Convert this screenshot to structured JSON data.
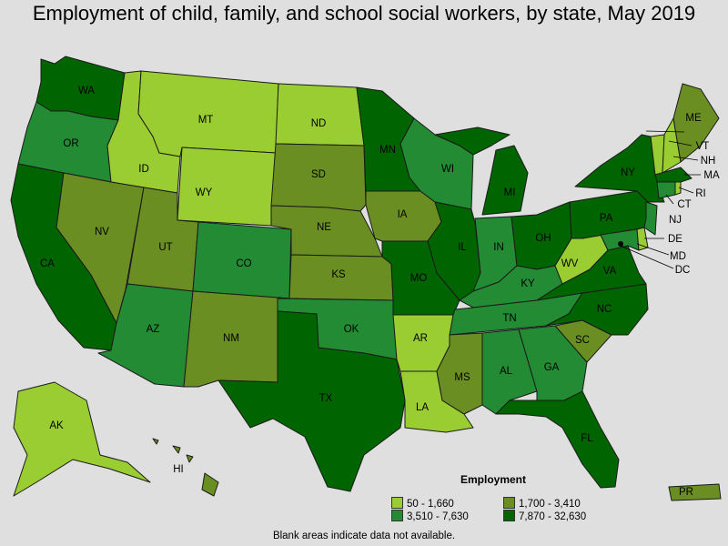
{
  "title": "Employment of child, family, and school social workers, by state, May 2019",
  "legend": {
    "title": "Employment",
    "items": [
      {
        "range": "50 - 1,660",
        "color": "#9acd32"
      },
      {
        "range": "1,700 - 3,410",
        "color": "#6b8e23"
      },
      {
        "range": "3,510 - 7,630",
        "color": "#228b34"
      },
      {
        "range": "7,870 - 32,630",
        "color": "#006400"
      }
    ]
  },
  "note": "Blank areas indicate data not available.",
  "states": {
    "WA": {
      "label": "WA",
      "bin": 3
    },
    "OR": {
      "label": "OR",
      "bin": 2
    },
    "CA": {
      "label": "CA",
      "bin": 3
    },
    "ID": {
      "label": "ID",
      "bin": 0
    },
    "NV": {
      "label": "NV",
      "bin": 1
    },
    "MT": {
      "label": "MT",
      "bin": 0
    },
    "WY": {
      "label": "WY",
      "bin": 0
    },
    "UT": {
      "label": "UT",
      "bin": 1
    },
    "AZ": {
      "label": "AZ",
      "bin": 2
    },
    "CO": {
      "label": "CO",
      "bin": 2
    },
    "NM": {
      "label": "NM",
      "bin": 1
    },
    "ND": {
      "label": "ND",
      "bin": 0
    },
    "SD": {
      "label": "SD",
      "bin": 1
    },
    "NE": {
      "label": "NE",
      "bin": 1
    },
    "KS": {
      "label": "KS",
      "bin": 1
    },
    "OK": {
      "label": "OK",
      "bin": 2
    },
    "TX": {
      "label": "TX",
      "bin": 3
    },
    "MN": {
      "label": "MN",
      "bin": 3
    },
    "IA": {
      "label": "IA",
      "bin": 1
    },
    "MO": {
      "label": "MO",
      "bin": 3
    },
    "AR": {
      "label": "AR",
      "bin": 0
    },
    "LA": {
      "label": "LA",
      "bin": 0
    },
    "WI": {
      "label": "WI",
      "bin": 2
    },
    "IL": {
      "label": "IL",
      "bin": 3
    },
    "MI": {
      "label": "MI",
      "bin": 3
    },
    "IN": {
      "label": "IN",
      "bin": 2
    },
    "OH": {
      "label": "OH",
      "bin": 3
    },
    "KY": {
      "label": "KY",
      "bin": 2
    },
    "TN": {
      "label": "TN",
      "bin": 2
    },
    "MS": {
      "label": "MS",
      "bin": 1
    },
    "AL": {
      "label": "AL",
      "bin": 2
    },
    "GA": {
      "label": "GA",
      "bin": 2
    },
    "FL": {
      "label": "FL",
      "bin": 3
    },
    "SC": {
      "label": "SC",
      "bin": 1
    },
    "NC": {
      "label": "NC",
      "bin": 3
    },
    "VA": {
      "label": "VA",
      "bin": 3
    },
    "WV": {
      "label": "WV",
      "bin": 0
    },
    "PA": {
      "label": "PA",
      "bin": 3
    },
    "NY": {
      "label": "NY",
      "bin": 3
    },
    "VT": {
      "label": "VT",
      "bin": 0
    },
    "NH": {
      "label": "NH",
      "bin": 0
    },
    "ME": {
      "label": "ME",
      "bin": 1
    },
    "MA": {
      "label": "MA",
      "bin": 3
    },
    "RI": {
      "label": "RI",
      "bin": 0
    },
    "CT": {
      "label": "CT",
      "bin": 2
    },
    "NJ": {
      "label": "NJ",
      "bin": 2
    },
    "DE": {
      "label": "DE",
      "bin": 0
    },
    "MD": {
      "label": "MD",
      "bin": 2
    },
    "DC": {
      "label": "DC",
      "bin": 3
    },
    "AK": {
      "label": "AK",
      "bin": 0
    },
    "HI": {
      "label": "HI",
      "bin": 1
    },
    "PR": {
      "label": "PR",
      "bin": 1
    }
  }
}
